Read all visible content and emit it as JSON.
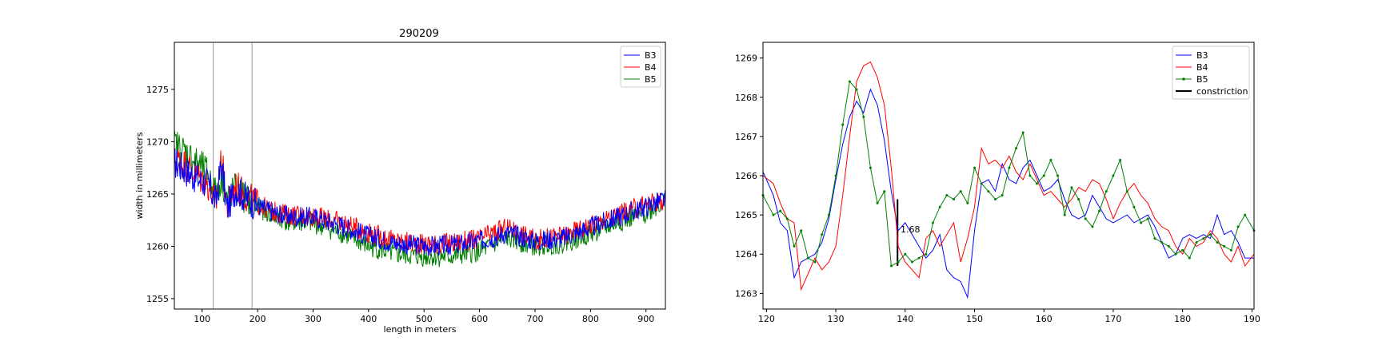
{
  "chart_data": [
    {
      "type": "line",
      "title": "290209",
      "xlabel": "length in meters",
      "ylabel": "width in millimeters",
      "xlim": [
        50,
        935
      ],
      "ylim": [
        1254,
        1279.5
      ],
      "xticks": [
        100,
        200,
        300,
        400,
        500,
        600,
        700,
        800,
        900
      ],
      "yticks": [
        1255,
        1260,
        1265,
        1270,
        1275
      ],
      "vlines": [
        120,
        190
      ],
      "grid": false,
      "legend": "top-right",
      "series": [
        {
          "name": "B3",
          "color": "#0000ff",
          "x": [
            50,
            70,
            90,
            110,
            125,
            135,
            145,
            160,
            180,
            200,
            230,
            260,
            300,
            350,
            400,
            450,
            500,
            550,
            600,
            650,
            700,
            750,
            800,
            850,
            900,
            935
          ],
          "y": [
            1268.0,
            1267.3,
            1266.5,
            1266.0,
            1264.3,
            1268.0,
            1263.5,
            1265.5,
            1264.6,
            1263.9,
            1263.2,
            1262.8,
            1262.8,
            1262.0,
            1261.0,
            1260.3,
            1260.0,
            1260.1,
            1260.5,
            1261.3,
            1260.5,
            1260.8,
            1261.8,
            1262.8,
            1263.8,
            1264.5
          ]
        },
        {
          "name": "B4",
          "color": "#ff0000",
          "x": [
            50,
            70,
            90,
            110,
            125,
            135,
            145,
            160,
            180,
            200,
            230,
            260,
            300,
            350,
            400,
            450,
            500,
            550,
            600,
            650,
            700,
            750,
            800,
            850,
            900,
            935
          ],
          "y": [
            1268.5,
            1267.8,
            1266.8,
            1266.0,
            1264.0,
            1268.5,
            1263.8,
            1265.8,
            1264.8,
            1264.0,
            1263.3,
            1263.0,
            1262.9,
            1262.3,
            1261.3,
            1260.5,
            1260.2,
            1260.3,
            1260.7,
            1261.8,
            1260.6,
            1261.0,
            1262.0,
            1263.0,
            1264.0,
            1264.5
          ]
        },
        {
          "name": "B5",
          "color": "#008000",
          "x": [
            50,
            70,
            90,
            110,
            125,
            135,
            145,
            160,
            180,
            200,
            230,
            260,
            300,
            350,
            400,
            450,
            500,
            550,
            600,
            650,
            700,
            750,
            800,
            850,
            900,
            935
          ],
          "y": [
            1269.8,
            1269.0,
            1268.0,
            1267.0,
            1265.0,
            1266.5,
            1264.5,
            1265.5,
            1264.5,
            1263.8,
            1262.8,
            1262.3,
            1262.2,
            1261.3,
            1260.0,
            1259.2,
            1259.0,
            1259.0,
            1259.5,
            1260.8,
            1260.0,
            1260.3,
            1261.2,
            1262.3,
            1263.2,
            1264.3
          ]
        }
      ]
    },
    {
      "type": "line",
      "title": "",
      "xlabel": "",
      "ylabel": "",
      "xlim": [
        119.5,
        190.3
      ],
      "ylim": [
        1262.6,
        1269.4
      ],
      "xticks": [
        120,
        130,
        140,
        150,
        160,
        170,
        180,
        190
      ],
      "yticks": [
        1263,
        1264,
        1265,
        1266,
        1267,
        1268,
        1269
      ],
      "grid": false,
      "legend": "top-right",
      "annotation": {
        "text": "1.68",
        "x": 139.1,
        "y": 1264.55
      },
      "constriction": {
        "name": "constriction",
        "color": "#000000",
        "x": 138.9,
        "y": [
          1263.7,
          1265.4
        ]
      },
      "series": [
        {
          "name": "B3",
          "color": "#0000ff",
          "marker": false,
          "x": [
            119.5,
            121,
            122,
            123,
            124,
            125,
            126,
            127,
            128,
            129,
            130,
            131,
            132,
            133,
            134,
            135,
            136,
            137,
            138,
            139,
            140,
            141,
            142,
            143,
            144,
            145,
            146,
            147,
            148,
            149,
            150,
            151,
            152,
            153,
            154,
            155,
            156,
            157,
            158,
            159,
            160,
            161,
            162,
            163,
            164,
            165,
            166,
            167,
            168,
            169,
            170,
            171,
            172,
            173,
            174,
            175,
            176,
            177,
            178,
            179,
            180,
            181,
            182,
            183,
            184,
            185,
            186,
            187,
            188,
            189,
            190.3
          ],
          "y": [
            1266.1,
            1265.5,
            1264.8,
            1264.6,
            1263.4,
            1263.8,
            1263.9,
            1264.0,
            1264.3,
            1264.9,
            1265.9,
            1266.8,
            1267.5,
            1267.9,
            1267.6,
            1268.2,
            1267.8,
            1266.9,
            1265.6,
            1264.6,
            1264.8,
            1264.5,
            1264.2,
            1263.9,
            1264.1,
            1264.5,
            1263.6,
            1263.4,
            1263.3,
            1262.9,
            1264.6,
            1265.8,
            1265.9,
            1265.6,
            1266.3,
            1265.9,
            1265.8,
            1266.2,
            1266.4,
            1266.0,
            1265.6,
            1265.7,
            1265.9,
            1265.4,
            1265.0,
            1264.9,
            1265.0,
            1265.5,
            1265.2,
            1264.9,
            1264.8,
            1264.9,
            1265.0,
            1264.8,
            1264.9,
            1265.0,
            1264.7,
            1264.3,
            1263.9,
            1264.0,
            1264.4,
            1264.5,
            1264.4,
            1264.5,
            1264.4,
            1265.0,
            1264.5,
            1264.6,
            1264.3,
            1263.9,
            1263.9
          ]
        },
        {
          "name": "B4",
          "color": "#ff0000",
          "marker": false,
          "x": [
            119.5,
            121,
            122,
            123,
            124,
            125,
            126,
            127,
            128,
            129,
            130,
            131,
            132,
            133,
            134,
            135,
            136,
            137,
            138,
            139,
            140,
            141,
            142,
            143,
            144,
            145,
            146,
            147,
            148,
            149,
            150,
            151,
            152,
            153,
            154,
            155,
            156,
            157,
            158,
            159,
            160,
            161,
            162,
            163,
            164,
            165,
            166,
            167,
            168,
            169,
            170,
            171,
            172,
            173,
            174,
            175,
            176,
            177,
            178,
            179,
            180,
            181,
            182,
            183,
            184,
            185,
            186,
            187,
            188,
            189,
            190.3
          ],
          "y": [
            1266.0,
            1265.8,
            1265.3,
            1264.9,
            1264.8,
            1263.1,
            1263.5,
            1263.9,
            1263.6,
            1263.8,
            1264.2,
            1265.5,
            1267.0,
            1268.4,
            1268.8,
            1268.9,
            1268.5,
            1267.8,
            1266.2,
            1264.2,
            1263.8,
            1263.6,
            1263.4,
            1264.4,
            1264.6,
            1264.2,
            1264.5,
            1264.8,
            1263.8,
            1264.4,
            1265.2,
            1266.7,
            1266.3,
            1266.4,
            1266.2,
            1266.5,
            1266.1,
            1265.9,
            1266.3,
            1265.9,
            1265.5,
            1265.6,
            1265.4,
            1265.2,
            1265.4,
            1265.7,
            1265.6,
            1265.9,
            1265.8,
            1265.4,
            1264.9,
            1265.3,
            1265.6,
            1265.8,
            1265.5,
            1265.3,
            1264.9,
            1264.7,
            1264.6,
            1264.2,
            1264.0,
            1264.4,
            1264.2,
            1264.3,
            1264.6,
            1264.4,
            1264.0,
            1263.8,
            1264.2,
            1263.7,
            1264.0
          ]
        },
        {
          "name": "B5",
          "color": "#008000",
          "marker": true,
          "x": [
            119.5,
            121,
            122,
            123,
            124,
            125,
            126,
            127,
            128,
            129,
            130,
            131,
            132,
            133,
            134,
            135,
            136,
            137,
            138,
            139,
            140,
            141,
            142,
            143,
            144,
            145,
            146,
            147,
            148,
            149,
            150,
            151,
            152,
            153,
            154,
            155,
            156,
            157,
            158,
            159,
            160,
            161,
            162,
            163,
            164,
            165,
            166,
            167,
            168,
            169,
            170,
            171,
            172,
            173,
            174,
            175,
            176,
            177,
            178,
            179,
            180,
            181,
            182,
            183,
            184,
            185,
            186,
            187,
            188,
            189,
            190.3
          ],
          "y": [
            1265.5,
            1265.0,
            1265.1,
            1264.9,
            1264.2,
            1264.6,
            1263.9,
            1263.8,
            1264.5,
            1265.0,
            1266.0,
            1267.3,
            1268.4,
            1268.2,
            1267.5,
            1266.2,
            1265.3,
            1265.6,
            1263.7,
            1263.8,
            1264.0,
            1263.8,
            1263.9,
            1264.0,
            1264.8,
            1265.2,
            1265.5,
            1265.4,
            1265.6,
            1265.3,
            1266.2,
            1265.8,
            1265.6,
            1265.4,
            1265.5,
            1266.2,
            1266.7,
            1267.1,
            1266.0,
            1265.8,
            1266.0,
            1266.4,
            1266.0,
            1265.0,
            1265.7,
            1265.4,
            1264.9,
            1264.7,
            1265.1,
            1265.6,
            1266.0,
            1266.4,
            1265.6,
            1265.2,
            1264.8,
            1264.9,
            1264.4,
            1264.3,
            1264.2,
            1264.0,
            1264.1,
            1263.9,
            1264.3,
            1264.4,
            1264.5,
            1264.3,
            1264.2,
            1264.1,
            1264.7,
            1265.0,
            1264.6
          ]
        }
      ]
    }
  ]
}
